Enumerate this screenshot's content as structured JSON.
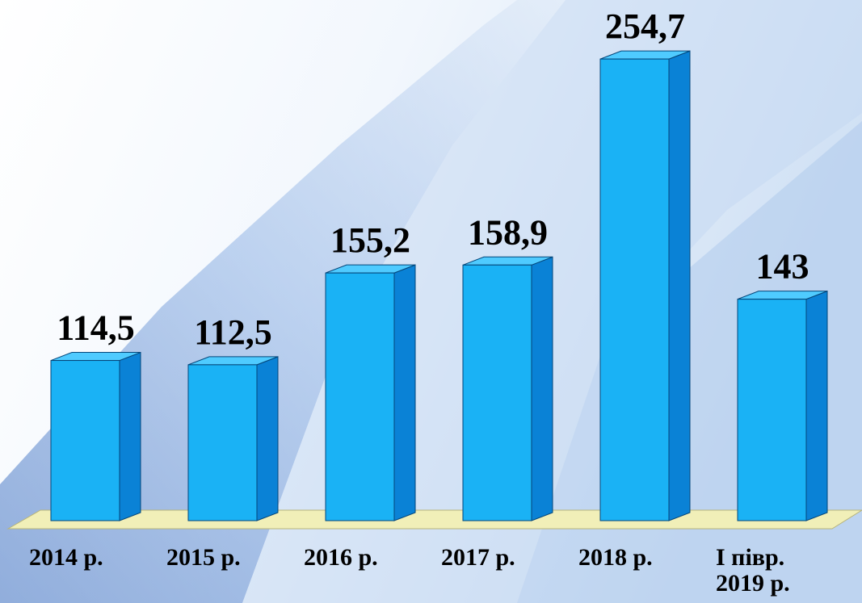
{
  "chart_data": {
    "type": "bar",
    "categories": [
      "2014 р.",
      "2015 р.",
      "2016 р.",
      "2017 р.",
      "2018 р.",
      "І півр. 2019 р."
    ],
    "values": [
      114.5,
      112.5,
      155.2,
      158.9,
      254.7,
      143
    ],
    "value_labels": [
      "114,5",
      "112,5",
      "155,2",
      "158,9",
      "254,7",
      "143"
    ],
    "color": "#1ab2f5",
    "ylim": [
      40,
      260
    ]
  }
}
